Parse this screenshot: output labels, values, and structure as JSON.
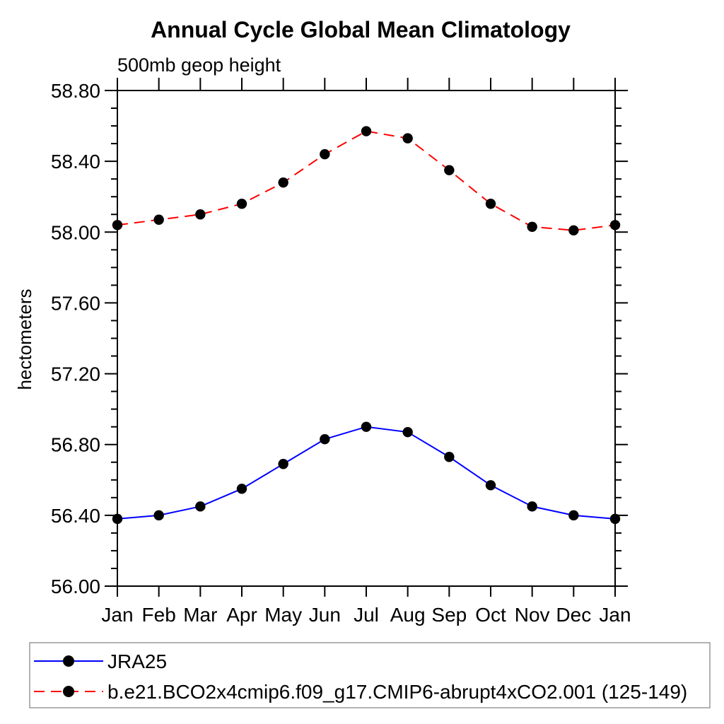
{
  "title": "Annual Cycle Global Mean Climatology",
  "subtitle": "500mb geop height",
  "ylabel": "hectometers",
  "chart_data": {
    "type": "line",
    "categories": [
      "Jan",
      "Feb",
      "Mar",
      "Apr",
      "May",
      "Jun",
      "Jul",
      "Aug",
      "Sep",
      "Oct",
      "Nov",
      "Dec",
      "Jan"
    ],
    "series": [
      {
        "name": "JRA25",
        "color": "#0000ff",
        "line_style": "solid",
        "marker": "filled-circle",
        "marker_color": "#000000",
        "values": [
          56.38,
          56.4,
          56.45,
          56.55,
          56.69,
          56.83,
          56.9,
          56.87,
          56.73,
          56.57,
          56.45,
          56.4,
          56.38
        ]
      },
      {
        "name": "b.e21.BCO2x4cmip6.f09_g17.CMIP6-abrupt4xCO2.001 (125-149)",
        "color": "#ff0000",
        "line_style": "dashed",
        "marker": "filled-circle",
        "marker_color": "#000000",
        "values": [
          58.04,
          58.07,
          58.1,
          58.16,
          58.28,
          58.44,
          58.57,
          58.53,
          58.35,
          58.16,
          58.03,
          58.01,
          58.04
        ]
      }
    ],
    "ylim": [
      56.0,
      58.8
    ],
    "ytick_major_step": 0.4,
    "ytick_minor_step": 0.1,
    "ytick_label_format": "2-decimals",
    "grid": "off",
    "legend_position": "bottom",
    "frame_color": "#000000",
    "legend_border_color": "#999999"
  }
}
